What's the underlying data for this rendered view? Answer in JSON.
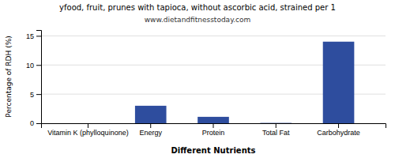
{
  "chart_data": {
    "type": "bar",
    "title": "yfood, fruit, prunes with tapioca, without ascorbic acid, strained per 1",
    "subtitle": "www.dietandfitnesstoday.com",
    "xlabel": "Different Nutrients",
    "ylabel": "Percentage of RDH (%)",
    "categories": [
      "Vitamin K (phylloquinone)",
      "Energy",
      "Protein",
      "Total Fat",
      "Carbohydrate"
    ],
    "values": [
      0.0,
      3.0,
      1.1,
      0.05,
      14.0
    ],
    "color": "#2e4d9e",
    "ylim": [
      0,
      16
    ],
    "yticks": [
      0,
      5,
      10,
      15
    ],
    "grid": true
  }
}
